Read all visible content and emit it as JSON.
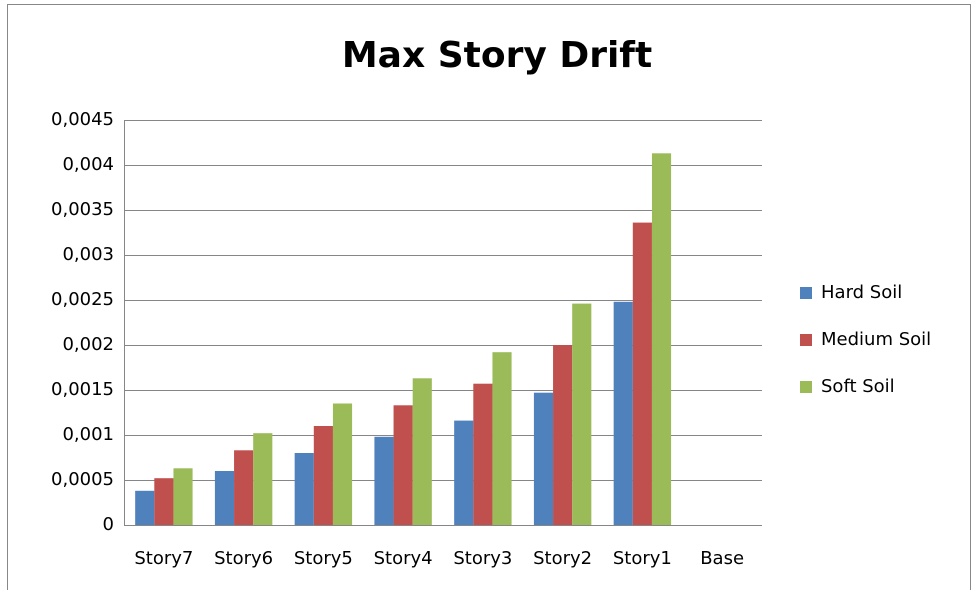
{
  "chart_data": {
    "type": "bar",
    "title": "Max Story Drift",
    "categories": [
      "Story7",
      "Story6",
      "Story5",
      "Story4",
      "Story3",
      "Story2",
      "Story1",
      "Base"
    ],
    "series": [
      {
        "name": "Hard Soil",
        "color": "#4f81bd",
        "values": [
          0.00038,
          0.0006,
          0.0008,
          0.00098,
          0.00116,
          0.00147,
          0.00248,
          0
        ]
      },
      {
        "name": "Medium Soil",
        "color": "#c0504d",
        "values": [
          0.00052,
          0.00083,
          0.0011,
          0.00133,
          0.00157,
          0.002,
          0.00336,
          0
        ]
      },
      {
        "name": "Soft Soil",
        "color": "#9bbb59",
        "values": [
          0.00063,
          0.00102,
          0.00135,
          0.00163,
          0.00192,
          0.00246,
          0.00413,
          0
        ]
      }
    ],
    "ylim": [
      0,
      0.0045
    ],
    "yticks": [
      0,
      {
        "value": 0.0005,
        "label": "0,0005"
      },
      {
        "value": 0.001,
        "label": "0,001"
      },
      {
        "value": 0.0015,
        "label": "0,0015"
      },
      {
        "value": 0.002,
        "label": "0,002"
      },
      {
        "value": 0.0025,
        "label": "0,0025"
      },
      {
        "value": 0.003,
        "label": "0,003"
      },
      {
        "value": 0.0035,
        "label": "0,0035"
      },
      {
        "value": 0.004,
        "label": "0,004"
      },
      {
        "value": 0.0045,
        "label": "0,0045"
      }
    ],
    "grid": true,
    "legend": "right"
  }
}
